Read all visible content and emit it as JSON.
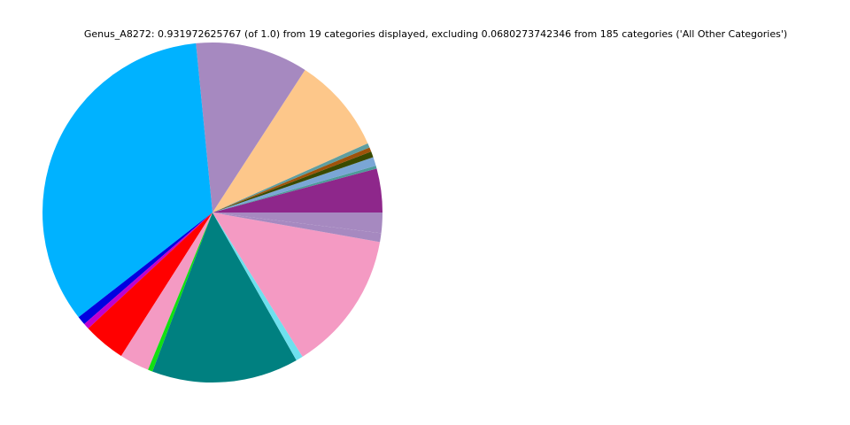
{
  "chart_data": {
    "type": "pie",
    "title": "Genus_A8272: 0.931972625767 (of 1.0) from 19 categories displayed, excluding 0.0680273742346 from 185 categories ('All Other Categories')",
    "values": [
      0.0388,
      0.0026,
      0.0078,
      0.0052,
      0.0039,
      0.0039,
      0.0854,
      0.0999,
      0.3169,
      0.0078,
      0.0052,
      0.0375,
      0.0264,
      0.0041,
      0.1302,
      0.0062,
      0.1243,
      0.0078,
      0.0181
    ],
    "colors": [
      "#8e278b",
      "#4e9a9a",
      "#7aa6d6",
      "#3a4a00",
      "#a0520a",
      "#5f9ea0",
      "#fdc78a",
      "#a689c0",
      "#00b2ff",
      "#0000e0",
      "#c000d0",
      "#ff0000",
      "#f49ac3",
      "#11e011",
      "#008080",
      "#6ee0ee",
      "#f49ac3",
      "#a689c0",
      "#a689c0"
    ]
  }
}
